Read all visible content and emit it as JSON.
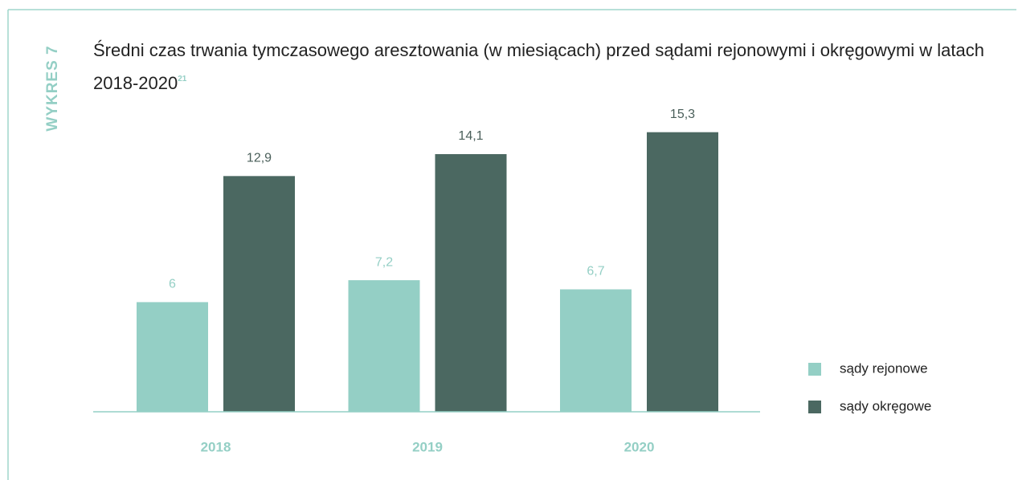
{
  "chart_data": {
    "type": "bar",
    "label": "WYKRES 7",
    "title": "Średni czas trwania tymczasowego aresztowania (w miesiącach) przed sądami rejonowymi i okręgowymi w latach 2018-2020",
    "title_note": "21",
    "categories": [
      "2018",
      "2019",
      "2020"
    ],
    "series": [
      {
        "name": "sądy rejonowe",
        "color": "#94cfc5",
        "values": [
          6,
          7.2,
          6.7
        ],
        "value_labels": [
          "6",
          "7,2",
          "6,7"
        ]
      },
      {
        "name": "sądy okręgowe",
        "color": "#4b6861",
        "values": [
          12.9,
          14.1,
          15.3
        ],
        "value_labels": [
          "12,9",
          "14,1",
          "15,3"
        ]
      }
    ],
    "ylim": [
      0,
      17
    ]
  }
}
